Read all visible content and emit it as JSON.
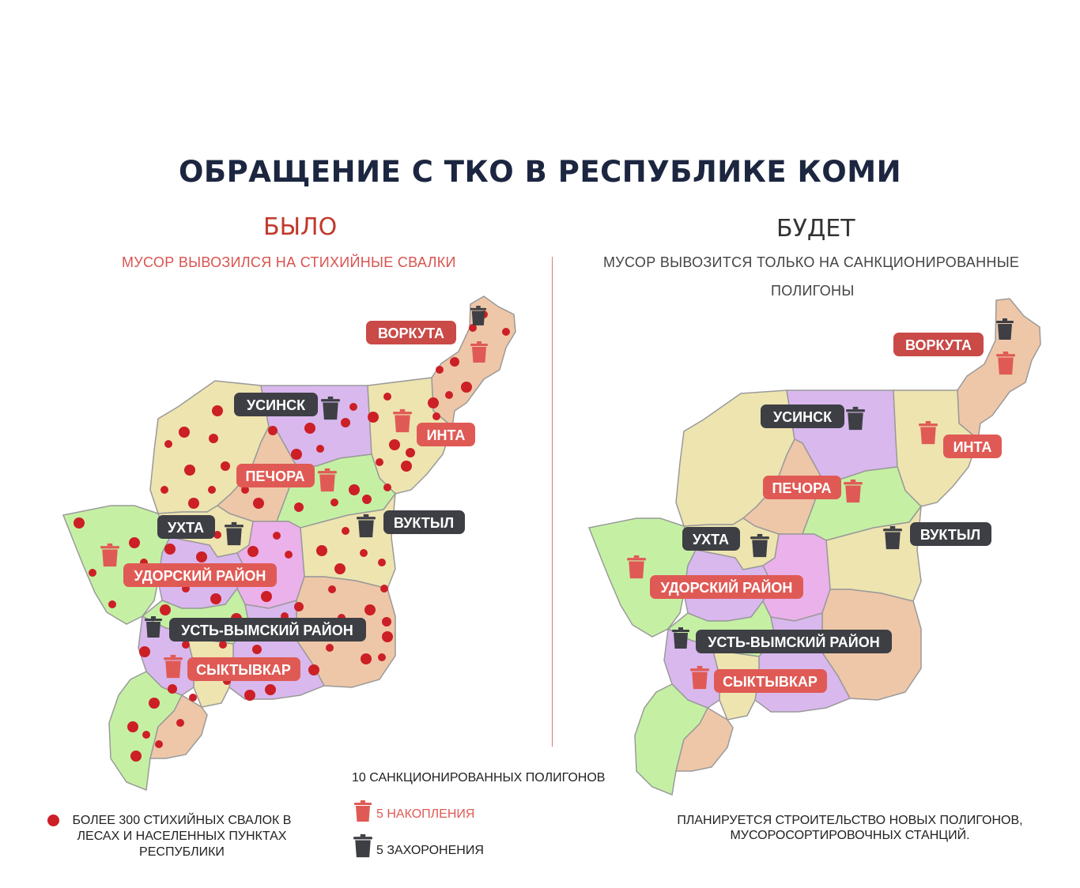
{
  "title": "ОБРАЩЕНИЕ С ТКО В РЕСПУБЛИКЕ КОМИ",
  "before": {
    "heading": "БЫЛО",
    "subtitle": "МУСОР ВЫВОЗИЛСЯ НА СТИХИЙНЫЕ СВАЛКИ"
  },
  "after": {
    "heading": "БУДЕТ",
    "subtitle_line1": "МУСОР ВЫВОЗИТСЯ ТОЛЬКО НА САНКЦИОНИРОВАННЫЕ",
    "subtitle_line2": "ПОЛИГОНЫ"
  },
  "cities": [
    {
      "name": "ВОРКУТА",
      "type": "accumulation"
    },
    {
      "name": "УСИНСК",
      "type": "burial"
    },
    {
      "name": "ИНТА",
      "type": "accumulation"
    },
    {
      "name": "ПЕЧОРА",
      "type": "accumulation"
    },
    {
      "name": "УХТА",
      "type": "burial"
    },
    {
      "name": "ВУКТЫЛ",
      "type": "burial"
    },
    {
      "name": "УДОРСКИЙ РАЙОН",
      "type": "accumulation"
    },
    {
      "name": "УСТЬ-ВЫМСКИЙ РАЙОН",
      "type": "burial"
    },
    {
      "name": "СЫКТЫВКАР",
      "type": "accumulation"
    }
  ],
  "legend": {
    "dumps": "БОЛЕЕ 300 СТИХИЙНЫХ СВАЛОК В ЛЕСАХ И НАСЕЛЕННЫХ ПУНКТАХ РЕСПУБЛИКИ",
    "landfills_total": "10 САНКЦИОНИРОВАННЫХ ПОЛИГОНОВ",
    "accumulation": "5 НАКОПЛЕНИЯ",
    "burial": "5 ЗАХОРОНЕНИЯ",
    "plan": "ПЛАНИРУЕТСЯ СТРОИТЕЛЬСТВО НОВЫХ ПОЛИГОНОВ, МУСОРОСОРТИРОВОЧНЫХ СТАНЦИЙ."
  },
  "colors": {
    "title": "#1c2640",
    "before_heading": "#c0392b",
    "before_subtitle": "#d9534f",
    "after_heading": "#333333",
    "after_subtitle": "#444444",
    "label_red": "#e05a55",
    "label_dark": "#3d3f44",
    "dump_dot": "#cc1f26",
    "region_green": "#c5f0a4",
    "region_purple": "#d9b8ee",
    "region_yellow": "#eee4b0",
    "region_peach": "#eec7a8",
    "region_pink": "#ebb1ea",
    "map_border": "#9a9a9a"
  }
}
